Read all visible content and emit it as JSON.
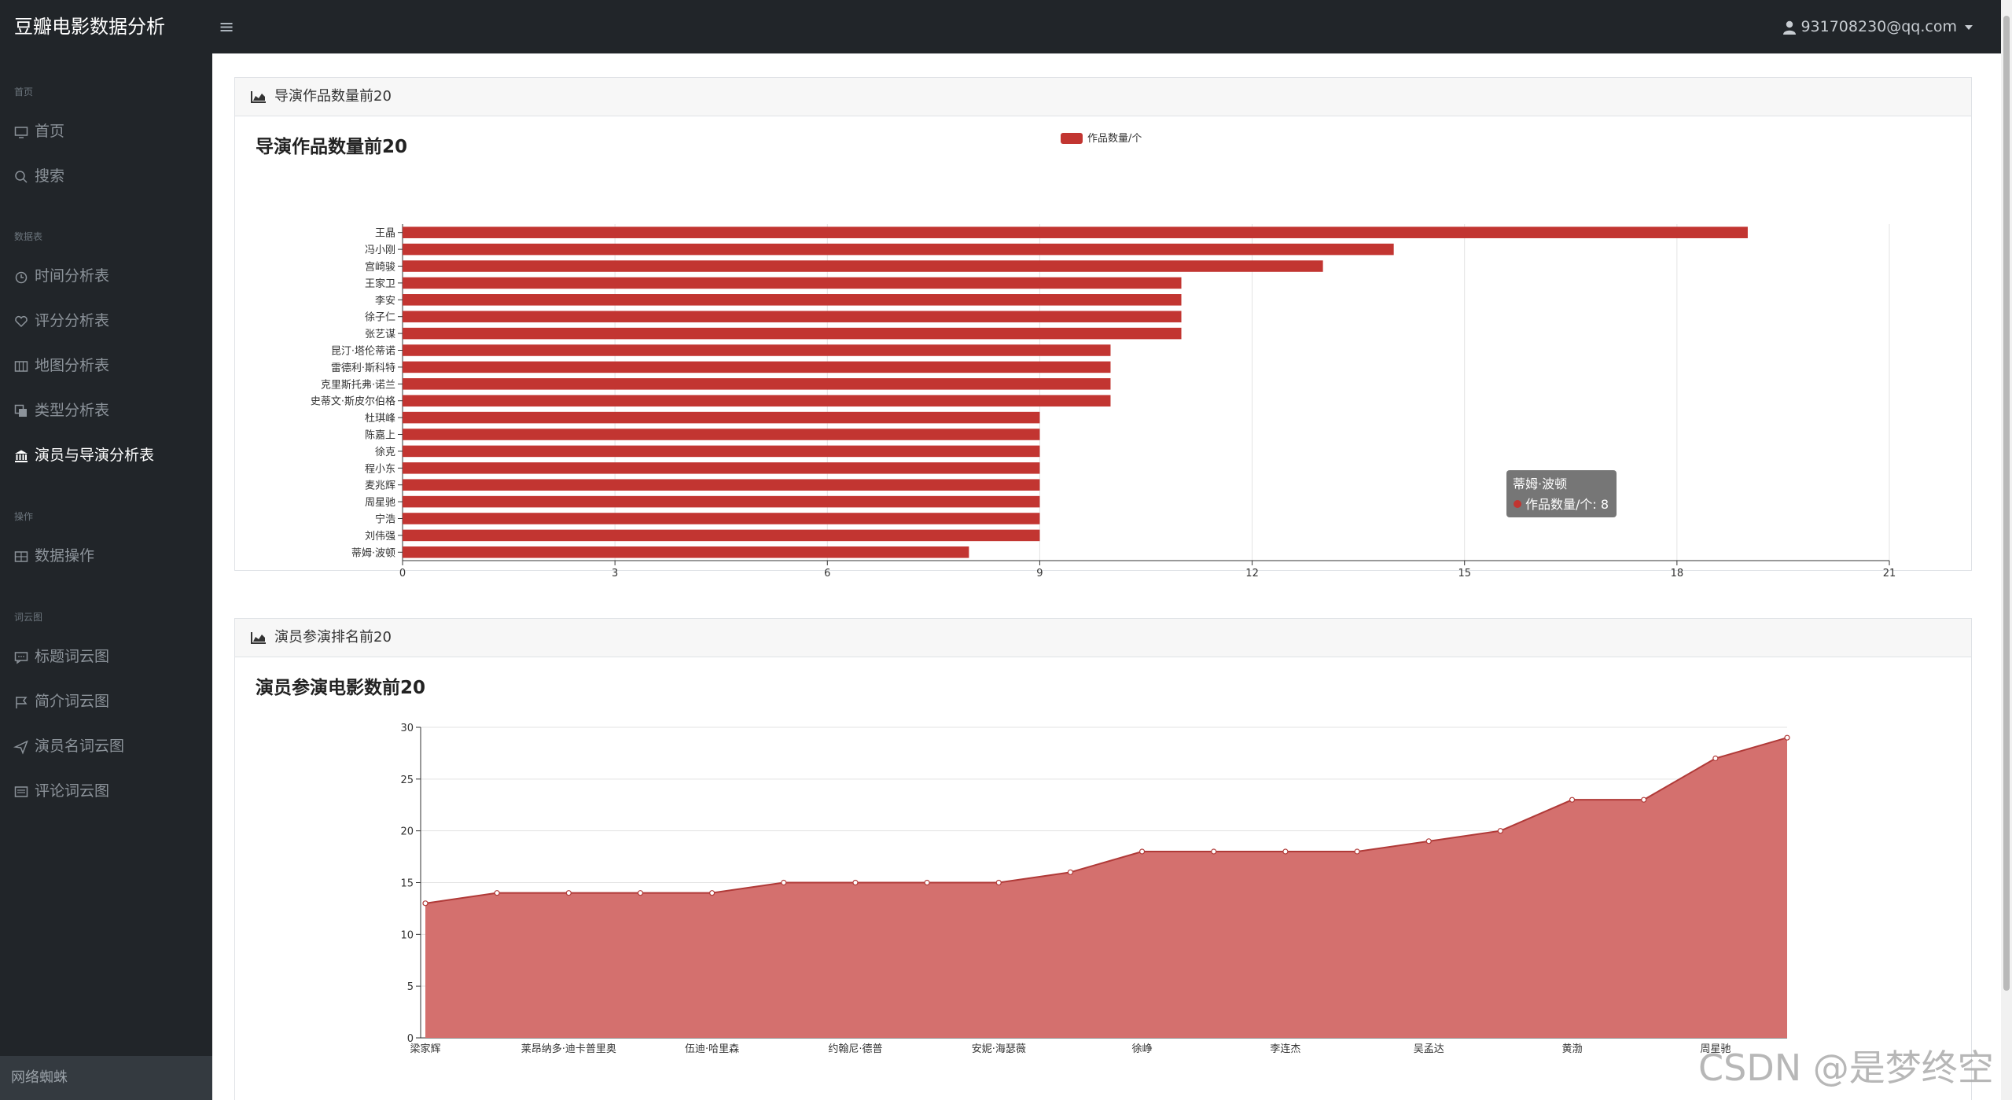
{
  "app": {
    "brand": "豆瓣电影数据分析",
    "menu_toggle": "≡",
    "user_email": "931708230@qq.com"
  },
  "sidebar": {
    "sections": [
      {
        "heading": "首页",
        "items": [
          {
            "label": "首页",
            "icon": "monitor-icon"
          },
          {
            "label": "搜索",
            "icon": "search-icon"
          }
        ]
      },
      {
        "heading": "数据表",
        "items": [
          {
            "label": "时间分析表",
            "icon": "clock-icon"
          },
          {
            "label": "评分分析表",
            "icon": "heart-icon"
          },
          {
            "label": "地图分析表",
            "icon": "map-icon"
          },
          {
            "label": "类型分析表",
            "icon": "copy-icon"
          },
          {
            "label": "演员与导演分析表",
            "icon": "bank-icon",
            "active": true
          }
        ]
      },
      {
        "heading": "操作",
        "items": [
          {
            "label": "数据操作",
            "icon": "table-icon"
          }
        ]
      },
      {
        "heading": "词云图",
        "items": [
          {
            "label": "标题词云图",
            "icon": "chat-icon"
          },
          {
            "label": "简介词云图",
            "icon": "flag-icon"
          },
          {
            "label": "演员名词云图",
            "icon": "send-icon"
          },
          {
            "label": "评论词云图",
            "icon": "list-icon"
          }
        ]
      }
    ],
    "footer": "网络蜘蛛"
  },
  "cards": [
    {
      "header": "导演作品数量前20",
      "chart_title": "导演作品数量前20"
    },
    {
      "header": "演员参演排名前20",
      "chart_title": "演员参演电影数前20"
    }
  ],
  "chart_data": [
    {
      "type": "bar",
      "orientation": "horizontal",
      "title": "导演作品数量前20",
      "categories": [
        "王晶",
        "冯小刚",
        "宫崎骏",
        "王家卫",
        "李安",
        "徐子仁",
        "张艺谋",
        "昆汀·塔伦蒂诺",
        "雷德利·斯科特",
        "克里斯托弗·诺兰",
        "史蒂文·斯皮尔伯格",
        "杜琪峰",
        "陈嘉上",
        "徐克",
        "程小东",
        "麦兆辉",
        "周星驰",
        "宁浩",
        "刘伟强",
        "蒂姆·波顿"
      ],
      "series": [
        {
          "name": "作品数量/个",
          "values": [
            19,
            14,
            13,
            11,
            11,
            11,
            11,
            10,
            10,
            10,
            10,
            9,
            9,
            9,
            9,
            9,
            9,
            9,
            9,
            8
          ]
        }
      ],
      "xlim": [
        0,
        21
      ],
      "xticks": [
        0,
        3,
        6,
        9,
        12,
        15,
        18,
        21
      ],
      "grid": true,
      "legend": "top-center",
      "color": "#c23531",
      "tooltip": {
        "title": "蒂姆·波顿",
        "series": "作品数量/个",
        "value": "8"
      }
    },
    {
      "type": "area",
      "title": "演员参演电影数前20",
      "categories": [
        "梁家辉",
        "",
        "莱昂纳多·迪卡普里奥",
        "",
        "伍迪·哈里森",
        "",
        "约翰尼·德普",
        "",
        "安妮·海瑟薇",
        "",
        "徐峥",
        "",
        "李连杰",
        "",
        "吴孟达",
        "",
        "黄渤",
        "",
        "周星驰",
        ""
      ],
      "values": [
        13,
        14,
        14,
        14,
        14,
        15,
        15,
        15,
        15,
        16,
        18,
        18,
        18,
        18,
        19,
        20,
        23,
        23,
        27,
        29
      ],
      "ylim": [
        0,
        30
      ],
      "yticks": [
        0,
        5,
        10,
        15,
        20,
        25,
        30
      ],
      "grid": true,
      "fill": "#d4706e",
      "line": "#b03a38"
    }
  ],
  "watermark": "CSDN @是梦终空"
}
